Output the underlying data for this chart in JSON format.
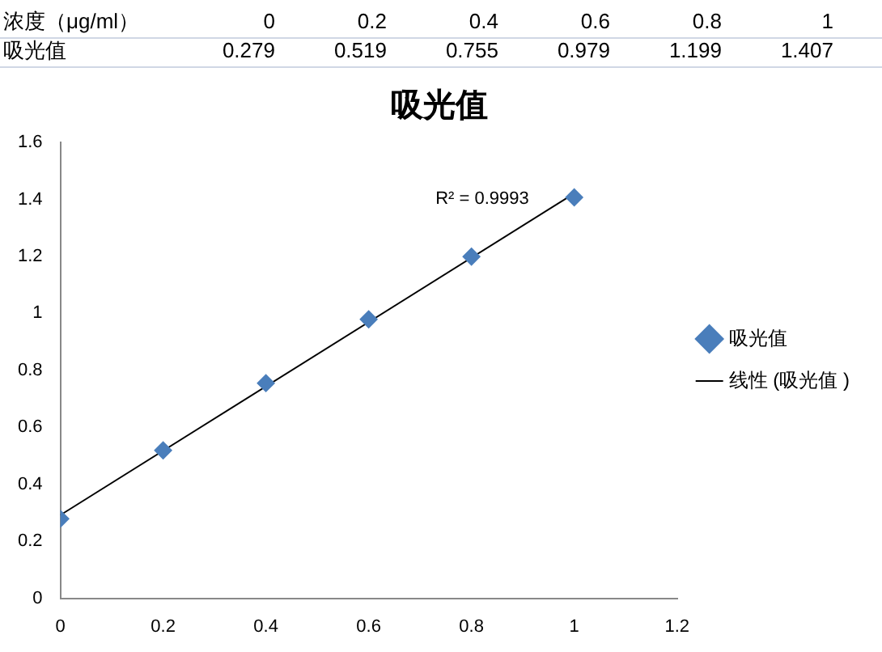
{
  "chart_data": {
    "type": "scatter",
    "title": "吸光值",
    "xlabel": "浓度（μg/ml）",
    "x": [
      0,
      0.2,
      0.4,
      0.6,
      0.8,
      1
    ],
    "series": [
      {
        "name": "吸光值",
        "color": "#4a7ebb",
        "marker": "diamond",
        "values": [
          0.279,
          0.519,
          0.755,
          0.979,
          1.199,
          1.407
        ]
      },
      {
        "name": "线性 (吸光值 )",
        "type": "line",
        "color": "#000000",
        "marker": "none",
        "x": [
          0,
          1
        ],
        "values": [
          0.292,
          1.421
        ]
      }
    ],
    "legend": "right",
    "xlim": [
      0,
      1.2
    ],
    "xticks": [
      0,
      0.2,
      0.4,
      0.6,
      0.8,
      1,
      1.2
    ],
    "ylim": [
      0,
      1.6
    ],
    "yticks": [
      0,
      0.2,
      0.4,
      0.6,
      0.8,
      1,
      1.2,
      1.4,
      1.6
    ],
    "annotations": [
      "R² = 0.9993",
      "0",
      "0.2",
      "0.4",
      "0.6",
      "0.8",
      "1",
      "0.279",
      "0.519",
      "0.755",
      "0.979",
      "1.199",
      "1.407"
    ]
  }
}
